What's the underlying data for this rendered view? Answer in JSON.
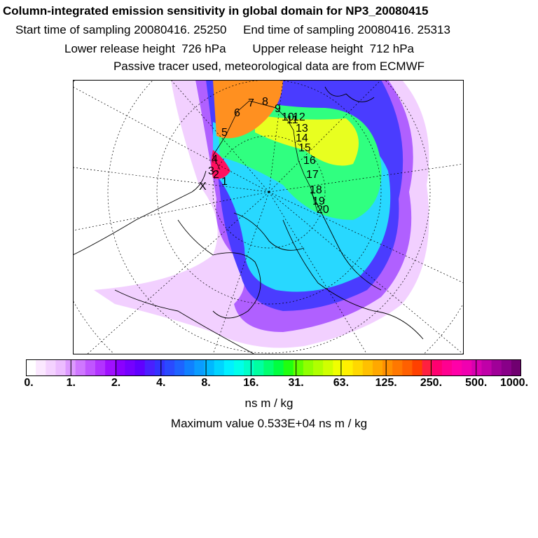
{
  "header": {
    "title": "Column-integrated emission sensitivity in global domain for NP3_20080415",
    "line2": "Start time of sampling 20080416. 25250     End time of sampling 20080416. 25313",
    "line3": "Lower release height  726 hPa        Upper release height  712 hPa",
    "line4": "Passive tracer used, meteorological data are from ECMWF"
  },
  "map": {
    "trajectory_labels": [
      "1",
      "2",
      "3",
      "4",
      "5",
      "6",
      "7",
      "8",
      "9",
      "10",
      "11",
      "12",
      "13",
      "14",
      "15",
      "16",
      "17",
      "18",
      "19",
      "20"
    ],
    "release_marker": "X"
  },
  "colorbar": {
    "colors": [
      "#ffffff",
      "#fbe8ff",
      "#f4d2ff",
      "#ecbcff",
      "#dd99ff",
      "#cf77ff",
      "#c055ff",
      "#b233ff",
      "#a010ff",
      "#8a00ff",
      "#7500ff",
      "#6000ff",
      "#4a1fff",
      "#3333ff",
      "#2a4aff",
      "#1e63ff",
      "#1080ff",
      "#0a9cff",
      "#00b8ff",
      "#00d4ff",
      "#00f0ff",
      "#00ffea",
      "#00ffc8",
      "#00ffa0",
      "#00ff70",
      "#00ff40",
      "#20ff10",
      "#60ff00",
      "#90ff00",
      "#b0ff00",
      "#d0ff00",
      "#f0ff00",
      "#fff000",
      "#ffd800",
      "#ffc000",
      "#ffa800",
      "#ff9000",
      "#ff7800",
      "#ff6000",
      "#ff4000",
      "#ff2040",
      "#ff0070",
      "#ff0090",
      "#ff00a8",
      "#f000b0",
      "#d800b0",
      "#c000a8",
      "#a00098",
      "#880088",
      "#700070"
    ],
    "tick_labels": [
      "0.",
      "1.",
      "2.",
      "4.",
      "8.",
      "16.",
      "31.",
      "63.",
      "125.",
      "250.",
      "500.",
      "1000."
    ],
    "unit_label": "ns m / kg"
  },
  "footer": {
    "max_value_text": "Maximum value  0.533E+04 ns m / kg"
  }
}
